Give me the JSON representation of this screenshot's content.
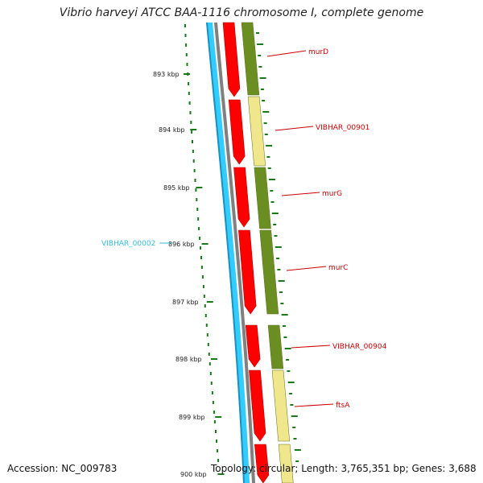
{
  "title": "Vibrio harveyi ATCC BAA-1116 chromosome I, complete genome",
  "footer": {
    "accession": "Accession: NC_009783",
    "summary": "Topology: circular; Length: 3,765,351 bp; Genes: 3,688"
  },
  "ticks": [
    "893 kbp",
    "894 kbp",
    "895 kbp",
    "896 kbp",
    "897 kbp",
    "898 kbp",
    "899 kbp",
    "900 kbp"
  ],
  "reverse_genes": [
    {
      "name": "VIBHAR_00002"
    }
  ],
  "forward_genes": [
    {
      "name": "murD"
    },
    {
      "name": "VIBHAR_00901"
    },
    {
      "name": "murG"
    },
    {
      "name": "murC"
    },
    {
      "name": "VIBHAR_00904"
    },
    {
      "name": "ftsA"
    }
  ],
  "colors": {
    "reverse_strand": "#33ccff",
    "backbone": "#808080",
    "cds": "#ff0000",
    "gene_dark": "#6b8e23",
    "gene_light": "#f0e68c",
    "forward_label": "#cc0000",
    "reverse_label": "#33bbdd",
    "gc_dots": "#1a7a1a"
  }
}
